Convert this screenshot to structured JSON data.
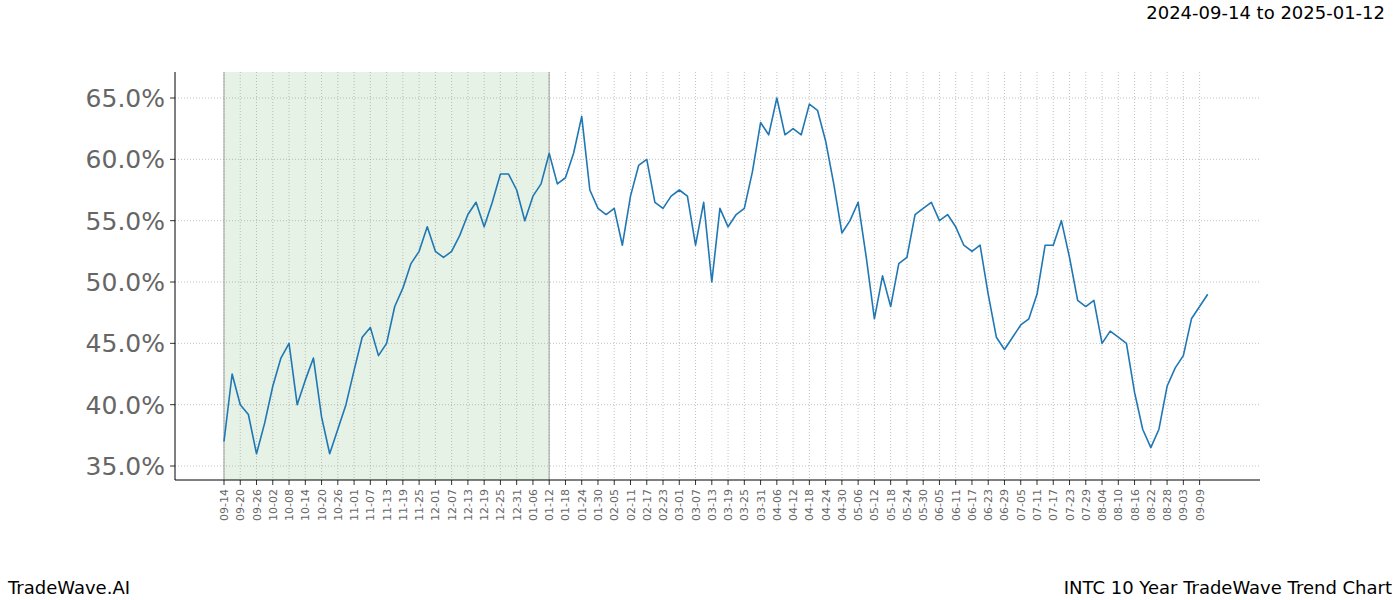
{
  "chart_data": {
    "type": "line",
    "title": "2024-09-14 to 2025-01-12",
    "footer_left": "TradeWave.AI",
    "footer_right": "INTC 10 Year TradeWave Trend Chart",
    "x": [
      "09-14",
      null,
      "09-20",
      null,
      "09-26",
      null,
      "10-02",
      null,
      "10-08",
      null,
      "10-14",
      null,
      "10-20",
      null,
      "10-26",
      null,
      "11-01",
      null,
      "11-07",
      null,
      "11-13",
      null,
      "11-19",
      null,
      "11-25",
      null,
      "12-01",
      null,
      "12-07",
      null,
      "12-13",
      null,
      "12-19",
      null,
      "12-25",
      null,
      "12-31",
      null,
      "01-06",
      null,
      "01-12",
      null,
      "01-18",
      null,
      "01-24",
      null,
      "01-30",
      null,
      "02-05",
      null,
      "02-11",
      null,
      "02-17",
      null,
      "02-23",
      null,
      "03-01",
      null,
      "03-07",
      null,
      "03-13",
      null,
      "03-19",
      null,
      "03-25",
      null,
      "03-31",
      null,
      "04-06",
      null,
      "04-12",
      null,
      "04-18",
      null,
      "04-24",
      null,
      "04-30",
      null,
      "05-06",
      null,
      "05-12",
      null,
      "05-18",
      null,
      "05-24",
      null,
      "05-30",
      null,
      "06-05",
      null,
      "06-11",
      null,
      "06-17",
      null,
      "06-23",
      null,
      "06-29",
      null,
      "07-05",
      null,
      "07-11",
      null,
      "07-17",
      null,
      "07-23",
      null,
      "07-29",
      null,
      "08-04",
      null,
      "08-10",
      null,
      "08-16",
      null,
      "08-22",
      null,
      "08-28",
      null,
      "09-03",
      null,
      "09-09",
      null
    ],
    "values": [
      37.0,
      42.5,
      40.0,
      39.2,
      36.0,
      38.5,
      41.5,
      43.8,
      45.0,
      40.0,
      42.0,
      43.8,
      39.0,
      36.0,
      38.0,
      40.0,
      42.8,
      45.5,
      46.3,
      44.0,
      45.0,
      48.0,
      49.5,
      51.5,
      52.5,
      54.5,
      52.5,
      52.0,
      52.5,
      53.8,
      55.5,
      56.5,
      54.5,
      56.5,
      58.8,
      58.8,
      57.5,
      55.0,
      57.0,
      58.0,
      60.5,
      58.0,
      58.5,
      60.5,
      63.5,
      57.5,
      56.0,
      55.5,
      56.0,
      53.0,
      57.0,
      59.5,
      60.0,
      56.5,
      56.0,
      57.0,
      57.5,
      57.0,
      53.0,
      56.5,
      50.0,
      56.0,
      54.5,
      55.5,
      56.0,
      59.0,
      63.0,
      62.0,
      65.0,
      62.0,
      62.5,
      62.0,
      64.5,
      64.0,
      61.5,
      58.0,
      54.0,
      55.0,
      56.5,
      52.0,
      47.0,
      50.5,
      48.0,
      51.5,
      52.0,
      55.5,
      56.0,
      56.5,
      55.0,
      55.5,
      54.5,
      53.0,
      52.5,
      53.0,
      49.0,
      45.5,
      44.5,
      45.5,
      46.5,
      47.0,
      49.0,
      53.0,
      53.0,
      55.0,
      52.0,
      48.5,
      48.0,
      48.5,
      45.0,
      46.0,
      45.5,
      45.0,
      41.0,
      38.0,
      36.5,
      38.0,
      41.5,
      43.0,
      44.0,
      47.0,
      48.0,
      49.0
    ],
    "color": "#1f77b4",
    "shaded_range": [
      "09-14",
      "01-12"
    ],
    "ylim": [
      33.86,
      67.12
    ],
    "yticks": [
      {
        "value": 35,
        "label": "35.0%"
      },
      {
        "value": 40,
        "label": "40.0%"
      },
      {
        "value": 45,
        "label": "45.0%"
      },
      {
        "value": 50,
        "label": "50.0%"
      },
      {
        "value": 55,
        "label": "55.0%"
      },
      {
        "value": 60,
        "label": "60.0%"
      },
      {
        "value": 65,
        "label": "65.0%"
      }
    ],
    "grid": true
  }
}
